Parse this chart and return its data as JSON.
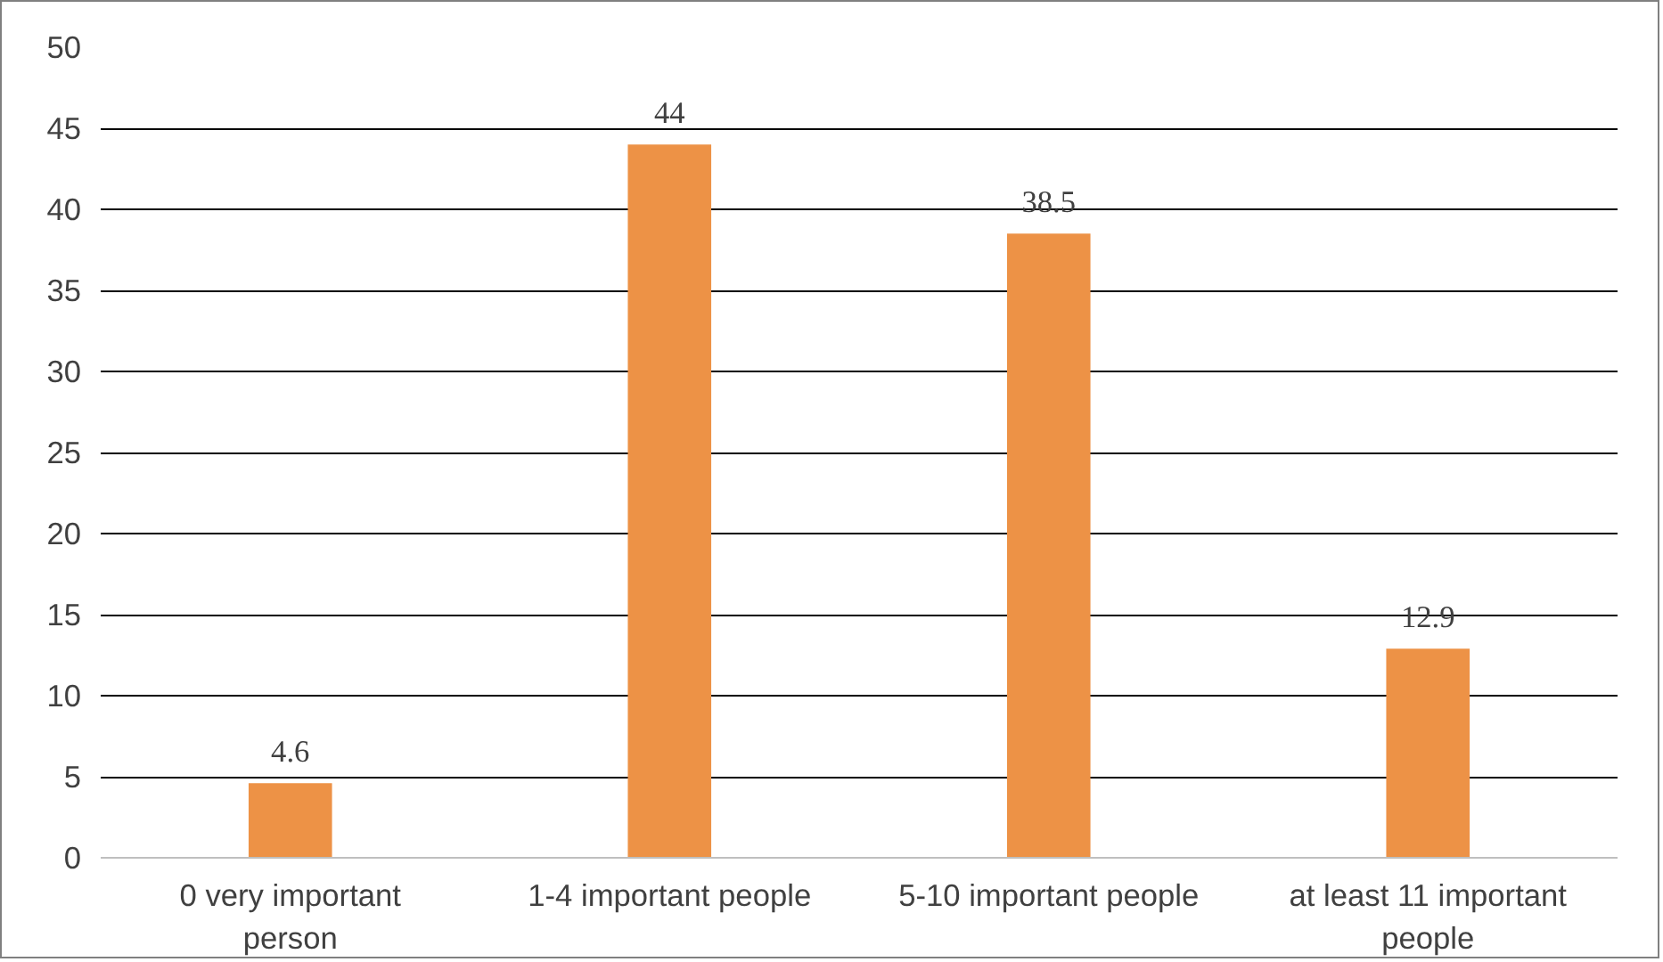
{
  "chart_data": {
    "type": "bar",
    "categories": [
      "0 very important person",
      "1-4 important people",
      "5-10 important people",
      "at least 11 important people"
    ],
    "values": [
      4.6,
      44,
      38.5,
      12.9
    ],
    "color": "#ed9246",
    "ylim": [
      0,
      50
    ],
    "yticks": [
      0,
      5,
      10,
      15,
      20,
      25,
      30,
      35,
      40,
      45,
      50
    ],
    "grid": "y",
    "data_labels": true
  }
}
